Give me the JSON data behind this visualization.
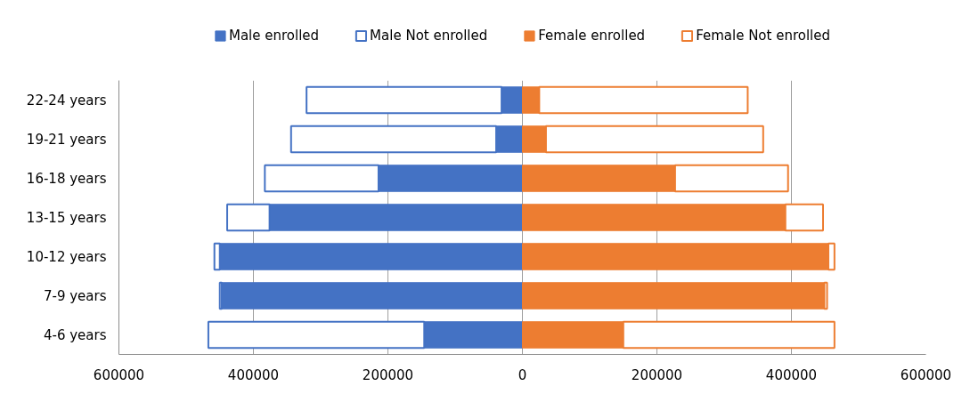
{
  "chart_data": {
    "type": "bar",
    "orientation": "horizontal",
    "stacked": true,
    "categories": [
      "22-24 years",
      "19-21 years",
      "16-18 years",
      "13-15 years",
      "10-12 years",
      "7-9 years",
      "4-6 years"
    ],
    "series": [
      {
        "name": "Male enrolled",
        "color": "#4472c4",
        "values": [
          -31000,
          -39000,
          -214000,
          -376000,
          -450000,
          -447000,
          -146000
        ]
      },
      {
        "name": "Male Not enrolled",
        "color": "#4472c4",
        "line_style": "solid",
        "values": [
          -290000,
          -305000,
          -169000,
          -63000,
          -8000,
          -3000,
          -321000
        ]
      },
      {
        "name": "Female enrolled",
        "color": "#ed7d31",
        "values": [
          25000,
          35000,
          227000,
          391000,
          455000,
          449000,
          150000
        ]
      },
      {
        "name": "Female Not enrolled",
        "color": "#ed7d31",
        "line_style": "solid",
        "values": [
          310000,
          323000,
          168000,
          56000,
          9000,
          4000,
          314000
        ]
      }
    ],
    "xlim": [
      -600000,
      600000
    ],
    "xticks": [
      {
        "value": -600000,
        "label": "600000"
      },
      {
        "value": -400000,
        "label": "400000"
      },
      {
        "value": -200000,
        "label": "200000"
      },
      0,
      200000,
      400000,
      600000
    ],
    "grid": "x",
    "legend": "top"
  }
}
